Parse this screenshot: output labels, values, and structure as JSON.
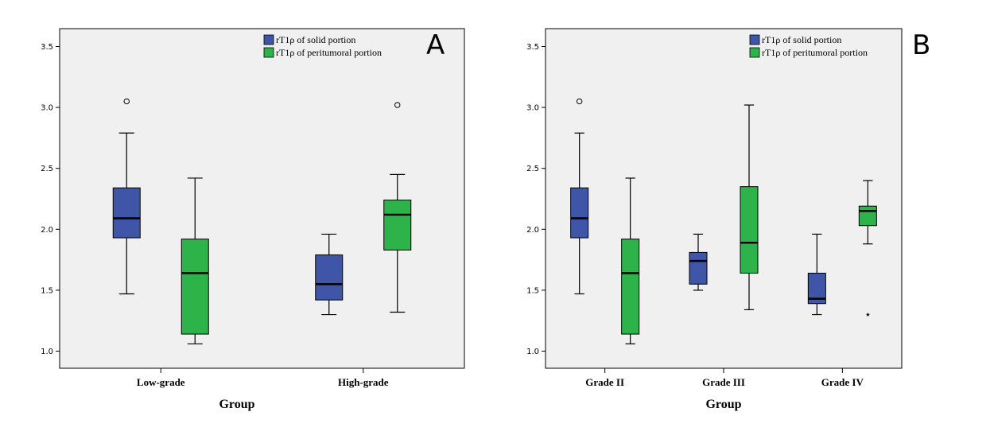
{
  "chart_data": [
    {
      "type": "box",
      "panel_label": "A",
      "xlabel": "Group",
      "ylabel": "",
      "ylim": [
        0.9,
        3.65
      ],
      "yticks": [
        "1.0",
        "1.5",
        "2.0",
        "2.5",
        "3.0",
        "3.5"
      ],
      "categories": [
        "Low-grade",
        "High-grade"
      ],
      "legend": {
        "placement": "top-right",
        "entries": [
          "rT1ρ of solid portion",
          "rT1ρ of peritumoral portion"
        ]
      },
      "series": [
        {
          "name": "rT1ρ of solid portion",
          "color": "#3f56a8",
          "boxes": [
            {
              "category": "Low-grade",
              "min": 1.47,
              "q1": 1.93,
              "median": 2.09,
              "q3": 2.34,
              "max": 2.79,
              "outliers": [
                3.05
              ],
              "outlier_marker": "circle"
            },
            {
              "category": "High-grade",
              "min": 1.3,
              "q1": 1.42,
              "median": 1.55,
              "q3": 1.79,
              "max": 1.96,
              "outliers": []
            }
          ]
        },
        {
          "name": "rT1ρ of peritumoral portion",
          "color": "#2db34a",
          "boxes": [
            {
              "category": "Low-grade",
              "min": 1.06,
              "q1": 1.14,
              "median": 1.64,
              "q3": 1.92,
              "max": 2.42,
              "outliers": []
            },
            {
              "category": "High-grade",
              "min": 1.32,
              "q1": 1.83,
              "median": 2.12,
              "q3": 2.24,
              "max": 2.45,
              "outliers": [
                3.02
              ],
              "outlier_marker": "circle"
            }
          ]
        }
      ]
    },
    {
      "type": "box",
      "panel_label": "B",
      "xlabel": "Group",
      "ylabel": "",
      "ylim": [
        0.9,
        3.65
      ],
      "yticks": [
        "1.0",
        "1.5",
        "2.0",
        "2.5",
        "3.0",
        "3.5"
      ],
      "categories": [
        "Grade II",
        "Grade III",
        "Grade IV"
      ],
      "legend": {
        "placement": "top-right",
        "entries": [
          "rT1ρ of solid portion",
          "rT1ρ of peritumoral portion"
        ]
      },
      "series": [
        {
          "name": "rT1ρ of solid portion",
          "color": "#3f56a8",
          "boxes": [
            {
              "category": "Grade II",
              "min": 1.47,
              "q1": 1.93,
              "median": 2.09,
              "q3": 2.34,
              "max": 2.79,
              "outliers": [
                3.05
              ],
              "outlier_marker": "circle"
            },
            {
              "category": "Grade III",
              "min": 1.5,
              "q1": 1.55,
              "median": 1.74,
              "q3": 1.81,
              "max": 1.96,
              "outliers": []
            },
            {
              "category": "Grade IV",
              "min": 1.3,
              "q1": 1.39,
              "median": 1.43,
              "q3": 1.64,
              "max": 1.96,
              "outliers": []
            }
          ]
        },
        {
          "name": "rT1ρ of peritumoral portion",
          "color": "#2db34a",
          "boxes": [
            {
              "category": "Grade II",
              "min": 1.06,
              "q1": 1.14,
              "median": 1.64,
              "q3": 1.92,
              "max": 2.42,
              "outliers": []
            },
            {
              "category": "Grade III",
              "min": 1.34,
              "q1": 1.64,
              "median": 1.89,
              "q3": 2.35,
              "max": 3.02,
              "outliers": []
            },
            {
              "category": "Grade IV",
              "min": 1.88,
              "q1": 2.03,
              "median": 2.15,
              "q3": 2.19,
              "max": 2.4,
              "outliers": [
                1.31
              ],
              "outlier_marker": "star"
            }
          ]
        }
      ]
    }
  ]
}
